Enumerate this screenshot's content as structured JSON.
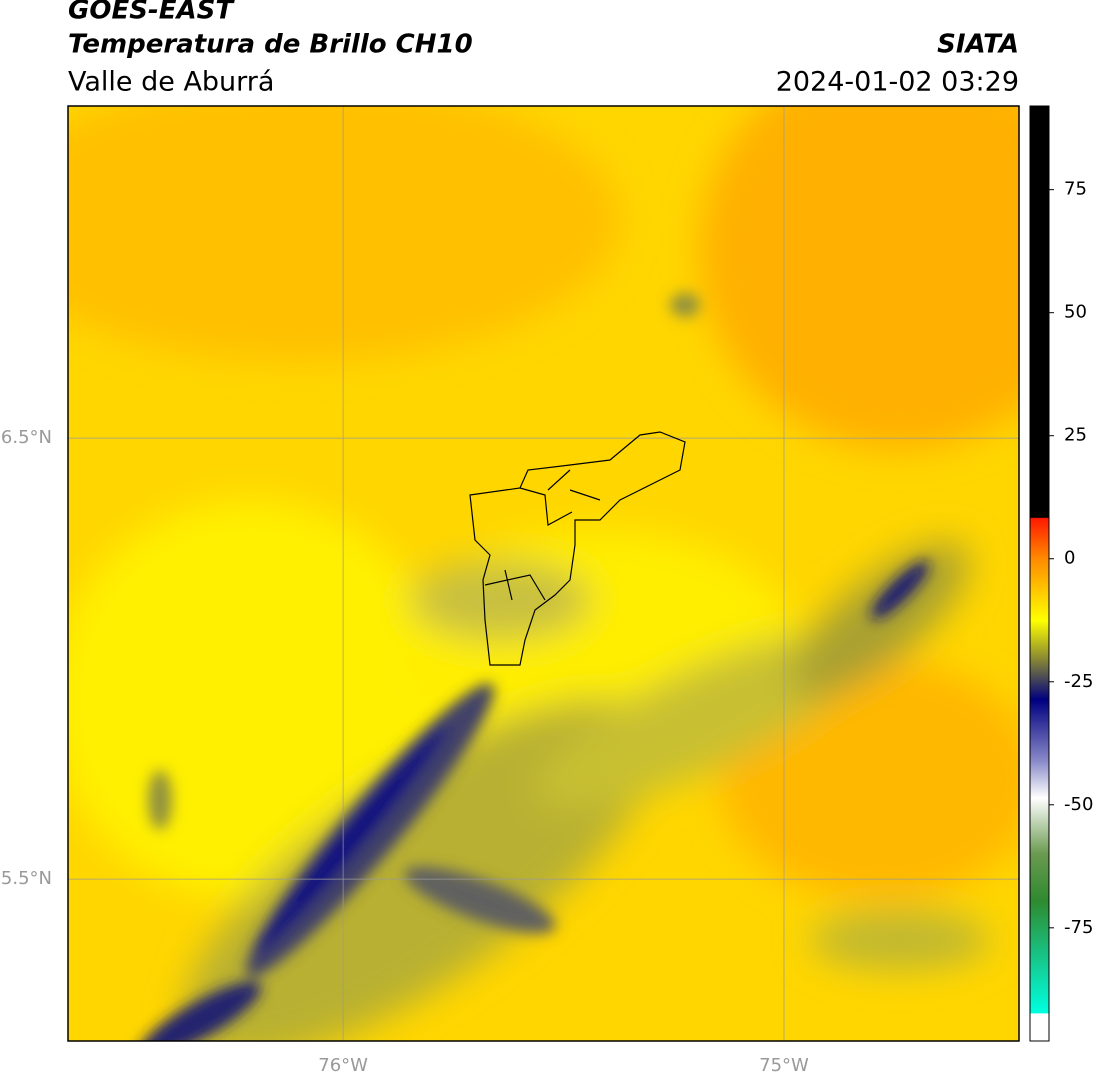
{
  "header": {
    "title": "GOES-EAST",
    "subtitle": "Temperatura de Brillo CH10",
    "region": "Valle de Aburrá",
    "source": "SIATA",
    "datetime": "2024-01-02 03:29"
  },
  "map": {
    "xlim": [
      -76.624,
      -74.467
    ],
    "ylim": [
      5.133,
      7.253
    ],
    "xticks": [
      {
        "value": -76,
        "label": "76°W"
      },
      {
        "value": -75,
        "label": "75°W"
      }
    ],
    "yticks": [
      {
        "value": 6.5,
        "label": "6.5°N"
      },
      {
        "value": 5.5,
        "label": "5.5°N"
      }
    ],
    "grid": true
  },
  "colorbar": {
    "lim": [
      -98,
      92
    ],
    "ticks": [
      75,
      50,
      25,
      0,
      -25,
      -50,
      -75
    ]
  }
}
